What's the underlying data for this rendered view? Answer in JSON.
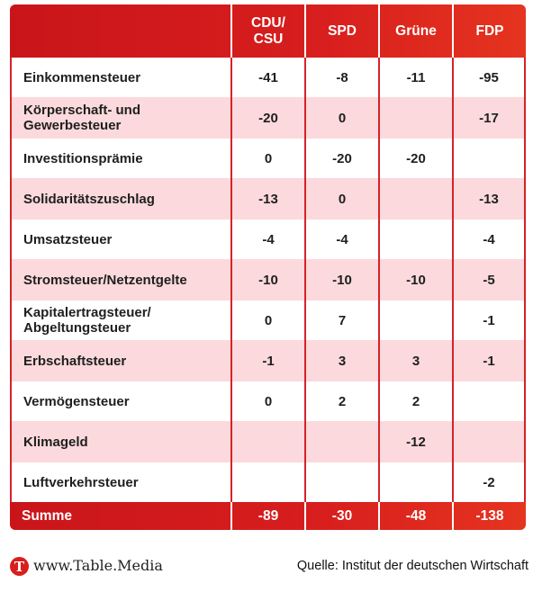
{
  "header": {
    "columns": [
      "",
      "CDU/\nCSU",
      "SPD",
      "Grüne",
      "FDP"
    ]
  },
  "rows": [
    {
      "label": "Einkommensteuer",
      "values": [
        "-41",
        "-8",
        "-11",
        "-95"
      ]
    },
    {
      "label": "Körperschaft- und\nGewerbesteuer",
      "values": [
        "-20",
        "0",
        "",
        "-17"
      ]
    },
    {
      "label": "Investitionsprämie",
      "values": [
        "0",
        "-20",
        "-20",
        ""
      ]
    },
    {
      "label": "Solidaritätszuschlag",
      "values": [
        "-13",
        "0",
        "",
        "-13"
      ]
    },
    {
      "label": "Umsatzsteuer",
      "values": [
        "-4",
        "-4",
        "",
        "-4"
      ]
    },
    {
      "label": "Stromsteuer/Netzentgelte",
      "values": [
        "-10",
        "-10",
        "-10",
        "-5"
      ]
    },
    {
      "label": "Kapitalertragsteuer/\nAbgeltungsteuer",
      "values": [
        "0",
        "7",
        "",
        "-1"
      ]
    },
    {
      "label": "Erbschaftsteuer",
      "values": [
        "-1",
        "3",
        "3",
        "-1"
      ]
    },
    {
      "label": "Vermögensteuer",
      "values": [
        "0",
        "2",
        "2",
        ""
      ]
    },
    {
      "label": "Klimageld",
      "values": [
        "",
        "",
        "-12",
        ""
      ]
    },
    {
      "label": "Luftverkehrsteuer",
      "values": [
        "",
        "",
        "",
        "-2"
      ]
    }
  ],
  "sum": {
    "label": "Summe",
    "values": [
      "-89",
      "-30",
      "-48",
      "-138"
    ]
  },
  "footer": {
    "logo_letter": "T",
    "site": "www.Table.Media",
    "source": "Quelle: Institut der deutschen Wirtschaft"
  },
  "chart_data": {
    "type": "table",
    "columns": [
      "CDU/CSU",
      "SPD",
      "Grüne",
      "FDP"
    ],
    "rows": [
      {
        "name": "Einkommensteuer",
        "values": [
          -41,
          -8,
          -11,
          -95
        ]
      },
      {
        "name": "Körperschaft- und Gewerbesteuer",
        "values": [
          -20,
          0,
          null,
          -17
        ]
      },
      {
        "name": "Investitionsprämie",
        "values": [
          0,
          -20,
          -20,
          null
        ]
      },
      {
        "name": "Solidaritätszuschlag",
        "values": [
          -13,
          0,
          null,
          -13
        ]
      },
      {
        "name": "Umsatzsteuer",
        "values": [
          -4,
          -4,
          null,
          -4
        ]
      },
      {
        "name": "Stromsteuer/Netzentgelte",
        "values": [
          -10,
          -10,
          -10,
          -5
        ]
      },
      {
        "name": "Kapitalertragsteuer/Abgeltungsteuer",
        "values": [
          0,
          7,
          null,
          -1
        ]
      },
      {
        "name": "Erbschaftsteuer",
        "values": [
          -1,
          3,
          3,
          -1
        ]
      },
      {
        "name": "Vermögensteuer",
        "values": [
          0,
          2,
          2,
          null
        ]
      },
      {
        "name": "Klimageld",
        "values": [
          null,
          null,
          -12,
          null
        ]
      },
      {
        "name": "Luftverkehrsteuer",
        "values": [
          null,
          null,
          null,
          -2
        ]
      }
    ],
    "totals": {
      "name": "Summe",
      "values": [
        -89,
        -30,
        -48,
        -138
      ]
    }
  },
  "colors": {
    "accent": "#d81e1e",
    "row_alt": "#fbd9dc"
  }
}
